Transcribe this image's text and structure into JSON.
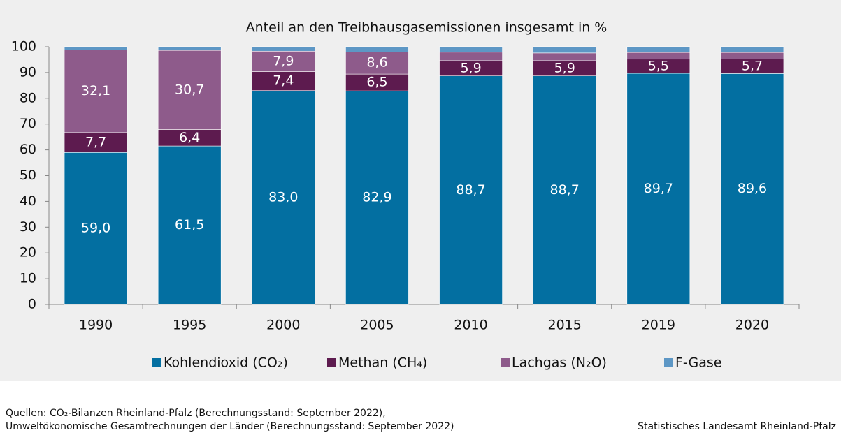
{
  "chart_data": {
    "type": "stacked_bar",
    "title": "Anteil an den Treibhausgasemissionen insgesamt in %",
    "categories": [
      "1990",
      "1995",
      "2000",
      "2005",
      "2010",
      "2015",
      "2019",
      "2020"
    ],
    "series": [
      {
        "name": "Kohlendioxid (CO₂)",
        "color": "#036fa1",
        "values": [
          59.0,
          61.5,
          83.0,
          82.9,
          88.7,
          88.7,
          89.7,
          89.6
        ],
        "value_labels": [
          "59,0",
          "61,5",
          "83,0",
          "82,9",
          "88,7",
          "88,7",
          "89,7",
          "89,6"
        ]
      },
      {
        "name": "Methan (CH₄)",
        "color": "#5d1b4f",
        "values": [
          7.7,
          6.4,
          7.4,
          6.5,
          5.9,
          5.9,
          5.5,
          5.7
        ],
        "value_labels": [
          "7,7",
          "6,4",
          "7,4",
          "6,5",
          "5,9",
          "5,9",
          "5,5",
          "5,7"
        ]
      },
      {
        "name": "Lachgas (N₂O)",
        "color": "#8e5b8b",
        "values": [
          32.1,
          30.7,
          7.9,
          8.6,
          3.3,
          3.0,
          2.6,
          2.5
        ],
        "value_labels": [
          "32,1",
          "30,7",
          "7,9",
          "8,6",
          null,
          null,
          null,
          null
        ]
      },
      {
        "name": "F-Gase",
        "color": "#5d97c5",
        "values": [
          1.2,
          1.4,
          1.7,
          2.0,
          2.1,
          2.4,
          2.2,
          2.2
        ]
      }
    ],
    "ylim": [
      0,
      100
    ],
    "yticks": [
      0,
      10,
      20,
      30,
      40,
      50,
      60,
      70,
      80,
      90,
      100
    ],
    "legend": "bottom",
    "source_left": [
      "Quellen: CO₂-Bilanzen Rheinland-Pfalz (Berechnungsstand: September 2022),",
      "Umweltökonomische Gesamtrechnungen der Länder (Berechnungsstand: September 2022)"
    ],
    "source_right": "Statistisches Landesamt Rheinland-Pfalz"
  }
}
